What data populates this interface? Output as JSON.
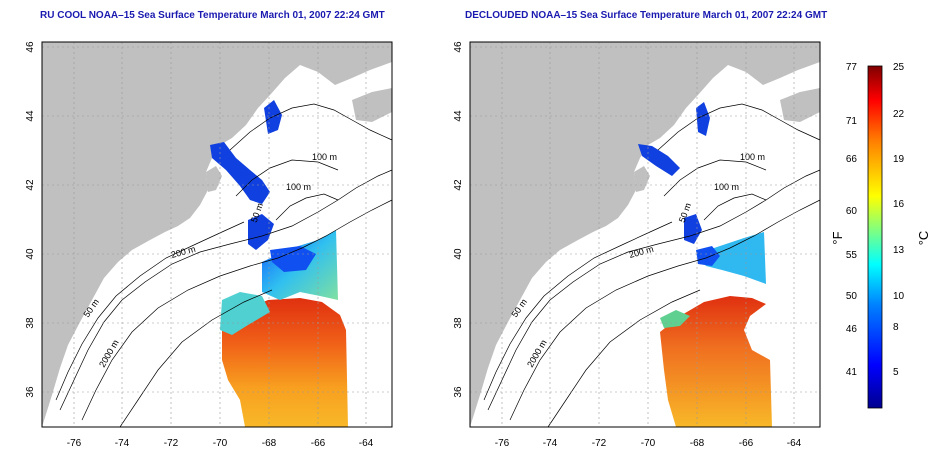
{
  "maps": [
    {
      "title": "RU COOL NOAA–15 Sea Surface Temperature March 01, 2007 22:24 GMT",
      "x_ticks": [
        "-76",
        "-74",
        "-72",
        "-70",
        "-68",
        "-66",
        "-64"
      ],
      "y_ticks": [
        "46",
        "44",
        "42",
        "40",
        "38",
        "36"
      ],
      "contour_labels": [
        "100 m",
        "100 m",
        "50 m",
        "200 m",
        "50 m",
        "2000 m"
      ]
    },
    {
      "title": "DECLOUDED NOAA–15 Sea Surface Temperature March 01, 2007 22:24 GMT",
      "x_ticks": [
        "-76",
        "-74",
        "-72",
        "-70",
        "-68",
        "-66",
        "-64"
      ],
      "y_ticks": [
        "46",
        "44",
        "42",
        "40",
        "38",
        "36"
      ],
      "contour_labels": [
        "100 m",
        "100 m",
        "50 m",
        "200 m",
        "50 m",
        "2000 m"
      ]
    }
  ],
  "colorbar": {
    "fahrenheit_label": "°F",
    "celsius_label": "°C",
    "fahrenheit_ticks": [
      "77",
      "71",
      "66",
      "60",
      "55",
      "50",
      "46",
      "41"
    ],
    "celsius_ticks": [
      "25",
      "22",
      "19",
      "16",
      "13",
      "10",
      "8",
      "5"
    ],
    "colors": [
      "#00008f",
      "#0000ff",
      "#0080ff",
      "#00ffff",
      "#80ff80",
      "#ffff00",
      "#ff8000",
      "#ff0000",
      "#800000"
    ]
  },
  "colors": {
    "land": "#c0c0c0",
    "title": "#1a1ab0"
  }
}
